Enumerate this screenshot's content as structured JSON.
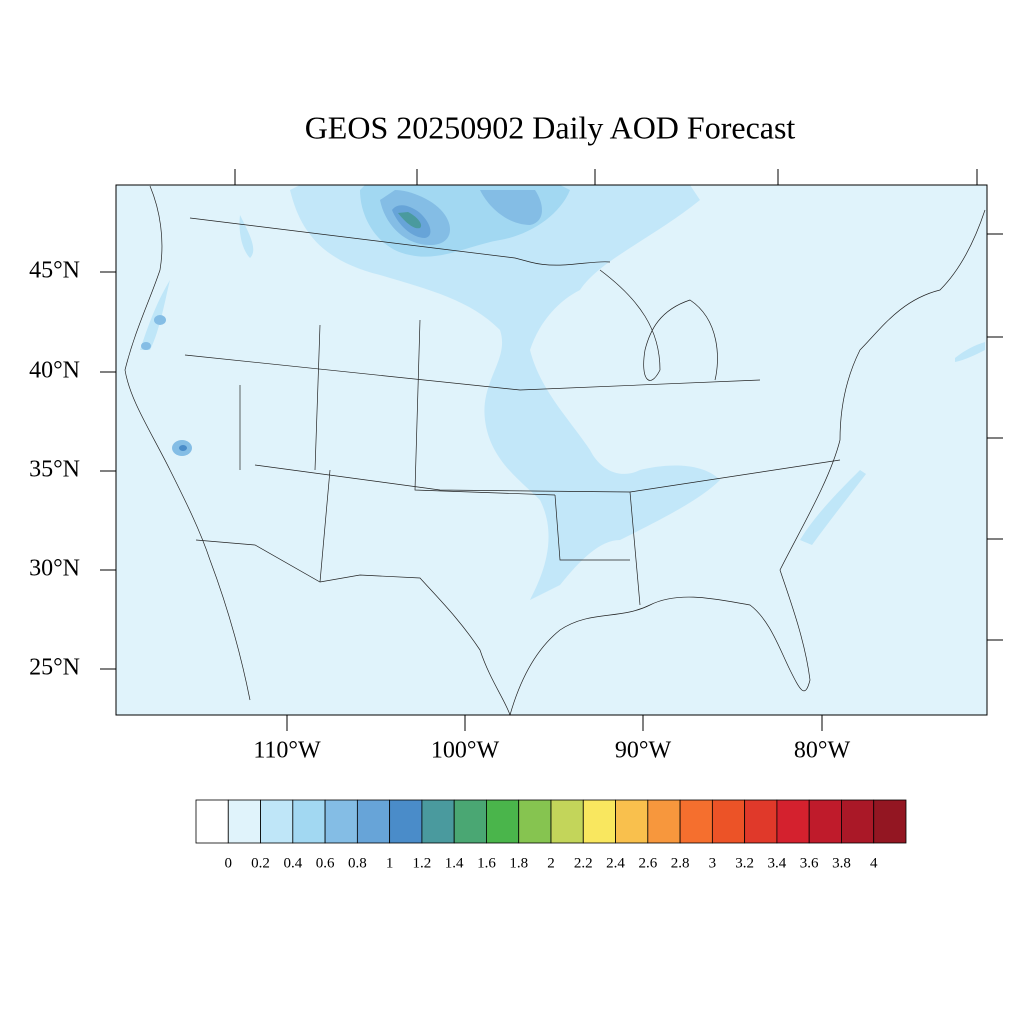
{
  "title": "GEOS 20250902 Daily AOD Forecast",
  "lat_labels": [
    "45°N",
    "40°N",
    "35°N",
    "30°N",
    "25°N"
  ],
  "lon_labels": [
    "110°W",
    "100°W",
    "90°W",
    "80°W"
  ],
  "colorbar": {
    "colors": [
      "#ffffff",
      "#e0f3fb",
      "#bfe6f8",
      "#a2d8f2",
      "#84bde5",
      "#67a4d8",
      "#4a8cc9",
      "#4a9a9e",
      "#4aa773",
      "#4ab54b",
      "#86c450",
      "#c3d55a",
      "#f9e75f",
      "#f9c04d",
      "#f7973d",
      "#f56f2e",
      "#ec5327",
      "#e0392a",
      "#d4212e",
      "#bf1b2b",
      "#aa1827",
      "#931622"
    ],
    "labels": [
      "0",
      "0.2",
      "0.4",
      "0.6",
      "0.8",
      "1",
      "1.2",
      "1.4",
      "1.6",
      "1.8",
      "2",
      "2.2",
      "2.4",
      "2.6",
      "2.8",
      "3",
      "3.2",
      "3.4",
      "3.6",
      "3.8",
      "4"
    ]
  }
}
